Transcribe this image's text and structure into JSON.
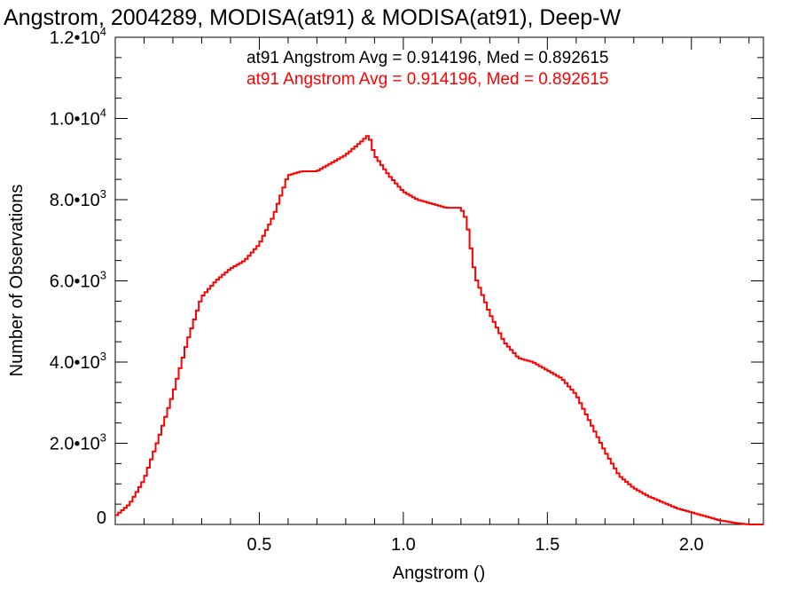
{
  "chart_data": {
    "type": "line",
    "step": true,
    "title": "Angstrom, 2004289, MODISA(at91) & MODISA(at91), Deep-W",
    "xlabel": "Angstrom ()",
    "ylabel": "Number of Observations",
    "xlim": [
      0.0,
      2.25
    ],
    "ylim": [
      0,
      12000
    ],
    "grid": false,
    "legend_placement": "top-right",
    "x_ticks": [
      {
        "value": 0.5,
        "label": "0.5"
      },
      {
        "value": 1.0,
        "label": "1.0"
      },
      {
        "value": 1.5,
        "label": "1.5"
      },
      {
        "value": 2.0,
        "label": "2.0"
      }
    ],
    "y_ticks": [
      {
        "value": 0,
        "mantissa": "0",
        "exponent": ""
      },
      {
        "value": 2000,
        "mantissa": "2.0•10",
        "exponent": "3"
      },
      {
        "value": 4000,
        "mantissa": "4.0•10",
        "exponent": "3"
      },
      {
        "value": 6000,
        "mantissa": "6.0•10",
        "exponent": "3"
      },
      {
        "value": 8000,
        "mantissa": "8.0•10",
        "exponent": "3"
      },
      {
        "value": 10000,
        "mantissa": "1.0•10",
        "exponent": "4"
      },
      {
        "value": 12000,
        "mantissa": "1.2•10",
        "exponent": "4"
      }
    ],
    "legend": [
      {
        "text": "at91 Angstrom Avg = 0.914196, Med = 0.892615",
        "color": "#000000"
      },
      {
        "text": "at91 Angstrom Avg = 0.914196, Med = 0.892615",
        "color": "#ff0000"
      }
    ],
    "series": [
      {
        "color": "#ff0000",
        "x": [
          0.0,
          0.05,
          0.1,
          0.15,
          0.2,
          0.25,
          0.3,
          0.35,
          0.4,
          0.45,
          0.5,
          0.55,
          0.6,
          0.65,
          0.7,
          0.75,
          0.8,
          0.85,
          0.88,
          0.9,
          0.95,
          1.0,
          1.05,
          1.1,
          1.15,
          1.2,
          1.22,
          1.25,
          1.3,
          1.35,
          1.4,
          1.45,
          1.5,
          1.55,
          1.6,
          1.65,
          1.7,
          1.75,
          1.8,
          1.85,
          1.9,
          1.95,
          2.0,
          2.05,
          2.1,
          2.15,
          2.2,
          2.25
        ],
        "y": [
          200,
          500,
          1100,
          2100,
          3200,
          4500,
          5600,
          6000,
          6300,
          6500,
          6900,
          7600,
          8600,
          8700,
          8700,
          8900,
          9100,
          9400,
          9600,
          9100,
          8600,
          8200,
          8000,
          7900,
          7800,
          7800,
          7500,
          6100,
          5200,
          4500,
          4100,
          4000,
          3800,
          3600,
          3200,
          2500,
          1800,
          1200,
          900,
          700,
          550,
          400,
          300,
          200,
          100,
          40,
          0,
          0
        ]
      }
    ]
  }
}
